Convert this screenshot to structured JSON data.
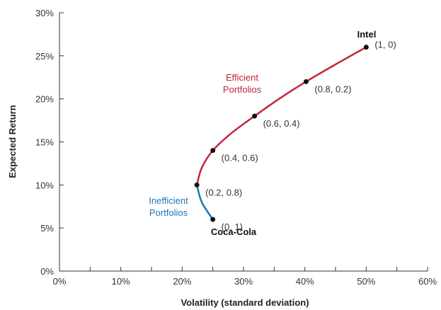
{
  "chart_data": {
    "type": "line",
    "xlabel": "Volatility (standard deviation)",
    "ylabel": "Expected Return",
    "xlim": [
      0,
      60
    ],
    "ylim": [
      0,
      30
    ],
    "x_ticks": [
      "0%",
      "10%",
      "20%",
      "30%",
      "40%",
      "50%",
      "60%"
    ],
    "y_ticks": [
      "0%",
      "5%",
      "10%",
      "15%",
      "20%",
      "25%",
      "30%"
    ],
    "grid": false,
    "series": [
      {
        "name": "Efficient Portfolios",
        "color": "#c0283c",
        "x": [
          22.4,
          23.2,
          25.0,
          28.0,
          31.8,
          35.8,
          40.2,
          45.0,
          50.0
        ],
        "y": [
          10.0,
          12.0,
          14.0,
          16.0,
          18.0,
          20.0,
          22.0,
          24.0,
          26.0
        ]
      },
      {
        "name": "Inefficient Portfolios",
        "color": "#1f77b4",
        "x": [
          25.0,
          23.2,
          22.4
        ],
        "y": [
          6.0,
          8.0,
          10.0
        ]
      }
    ],
    "points": [
      {
        "x": 50.0,
        "y": 26.0,
        "label": "(1, 0)"
      },
      {
        "x": 40.2,
        "y": 22.0,
        "label": "(0.8, 0.2)"
      },
      {
        "x": 31.8,
        "y": 18.0,
        "label": "(0.6, 0.4)"
      },
      {
        "x": 25.0,
        "y": 14.0,
        "label": "(0.4, 0.6)"
      },
      {
        "x": 22.4,
        "y": 10.0,
        "label": "(0.2, 0.8)"
      },
      {
        "x": 25.0,
        "y": 6.0,
        "label": "(0, 1)"
      }
    ],
    "annotations": {
      "intel": "Intel",
      "coca_cola": "Coca-Cola",
      "efficient_line1": "Efficient",
      "efficient_line2": "Portfolios",
      "inefficient_line1": "Inefficient",
      "inefficient_line2": "Portfolios"
    }
  }
}
